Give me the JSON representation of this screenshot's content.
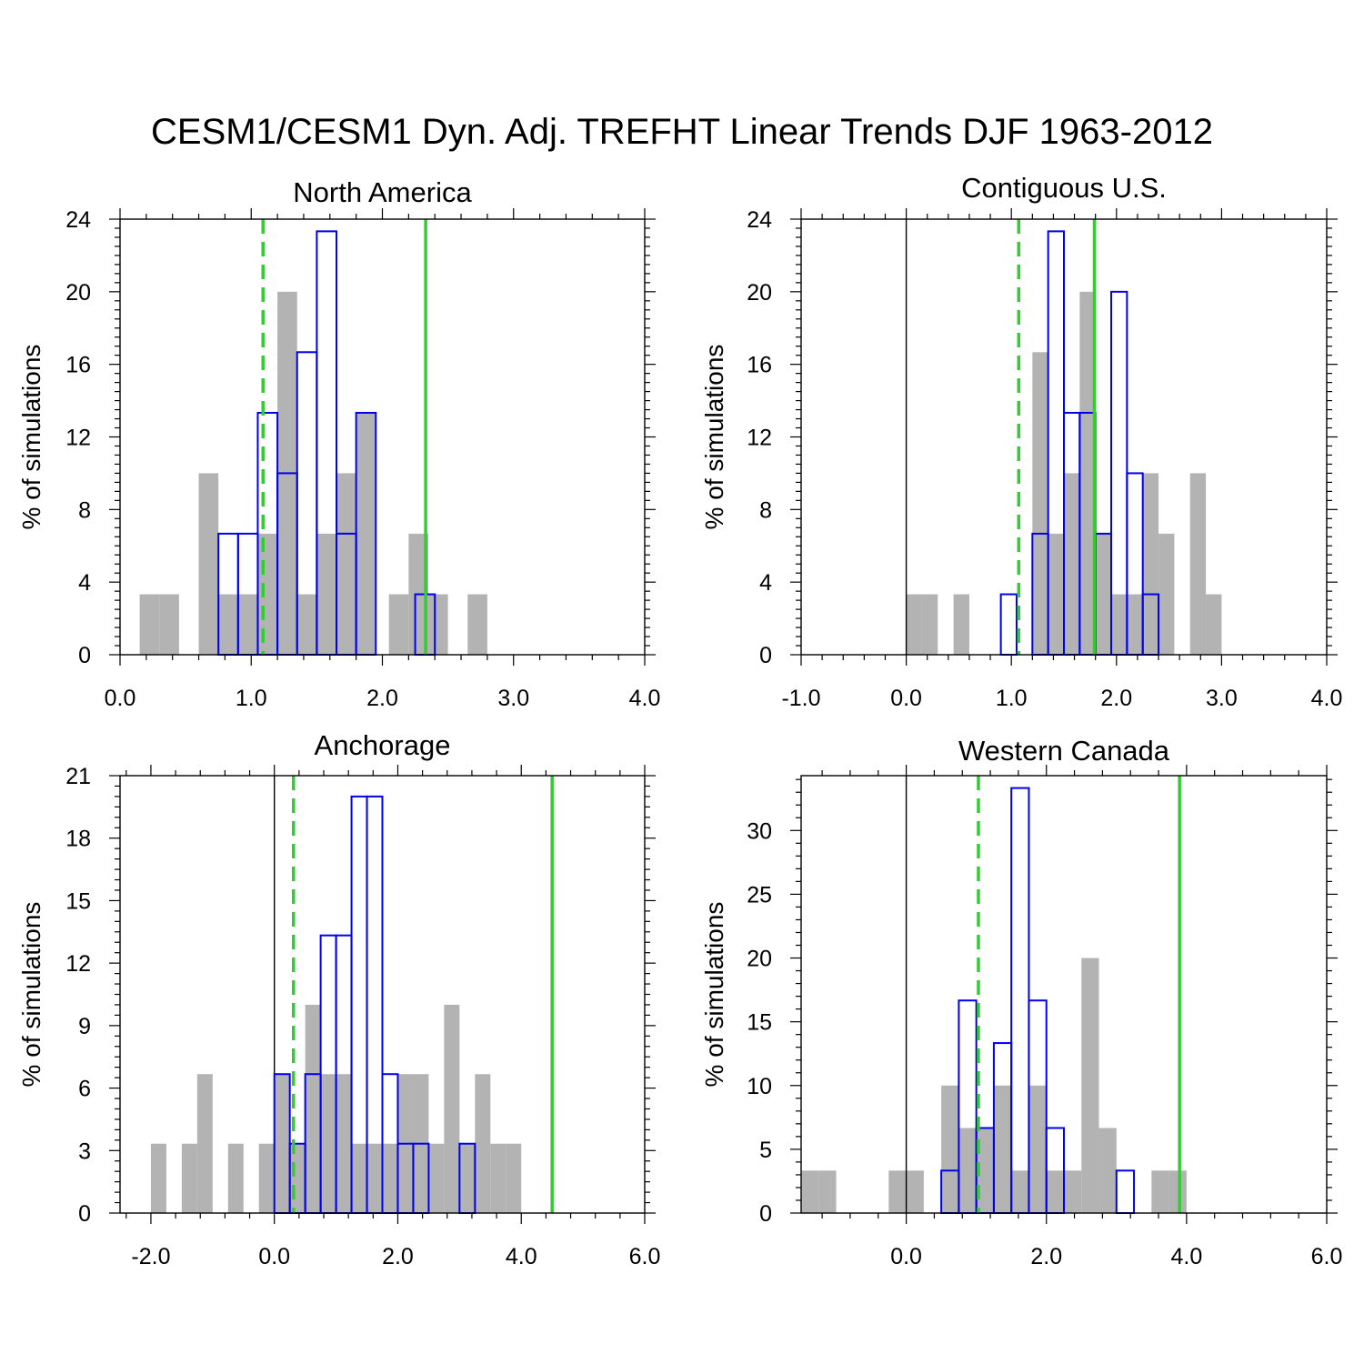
{
  "title": "CESM1/CESM1 Dyn. Adj. TREFHT Linear Trends DJF 1963-2012",
  "colors": {
    "cesm1_fill": "#b3b3b3",
    "dyn_adj_outline": "#0000ee",
    "reference_line": "#33cc33",
    "axis": "#000000"
  },
  "chart_data": [
    {
      "type": "bar",
      "title": "North America",
      "ylabel": "% of simulations",
      "xlim": [
        0,
        4
      ],
      "ylim": [
        0,
        24
      ],
      "xticks": [
        0,
        1,
        2,
        3,
        4
      ],
      "xtick_labels": [
        "0.0",
        "1.0",
        "2.0",
        "3.0",
        "4.0"
      ],
      "yticks": [
        0,
        4,
        8,
        12,
        16,
        20,
        24
      ],
      "ytick_labels": [
        "0",
        "4",
        "8",
        "12",
        "16",
        "20",
        "24"
      ],
      "zero_line": false,
      "bin_width": 0.15,
      "cesm1_bins": [
        [
          0.15,
          3.33
        ],
        [
          0.3,
          3.33
        ],
        [
          0.6,
          10.0
        ],
        [
          0.75,
          3.33
        ],
        [
          0.9,
          3.33
        ],
        [
          1.05,
          6.67
        ],
        [
          1.2,
          20.0
        ],
        [
          1.35,
          3.33
        ],
        [
          1.5,
          6.67
        ],
        [
          1.65,
          10.0
        ],
        [
          1.8,
          13.33
        ],
        [
          2.05,
          3.33
        ],
        [
          2.2,
          6.67
        ],
        [
          2.35,
          3.33
        ],
        [
          2.65,
          3.33
        ]
      ],
      "dyn_adj_bins": [
        [
          0.75,
          6.67
        ],
        [
          0.9,
          6.67
        ],
        [
          1.05,
          13.33
        ],
        [
          1.2,
          10.0
        ],
        [
          1.35,
          16.67
        ],
        [
          1.5,
          23.33
        ],
        [
          1.65,
          6.67
        ],
        [
          1.8,
          13.33
        ],
        [
          2.25,
          3.33
        ]
      ],
      "dashed_line_x": 1.09,
      "solid_line_x": 2.33
    },
    {
      "type": "bar",
      "title": "Contiguous U.S.",
      "ylabel": "% of simulations",
      "xlim": [
        -1,
        4
      ],
      "ylim": [
        0,
        24
      ],
      "xticks": [
        -1,
        0,
        1,
        2,
        3,
        4
      ],
      "xtick_labels": [
        "-1.0",
        "0.0",
        "1.0",
        "2.0",
        "3.0",
        "4.0"
      ],
      "yticks": [
        0,
        4,
        8,
        12,
        16,
        20,
        24
      ],
      "ytick_labels": [
        "0",
        "4",
        "8",
        "12",
        "16",
        "20",
        "24"
      ],
      "zero_line": true,
      "bin_width": 0.15,
      "cesm1_bins": [
        [
          0.0,
          3.33
        ],
        [
          0.15,
          3.33
        ],
        [
          0.45,
          3.33
        ],
        [
          1.2,
          16.67
        ],
        [
          1.35,
          6.67
        ],
        [
          1.5,
          10.0
        ],
        [
          1.65,
          20.0
        ],
        [
          1.8,
          6.67
        ],
        [
          1.95,
          3.33
        ],
        [
          2.1,
          3.33
        ],
        [
          2.25,
          10.0
        ],
        [
          2.4,
          6.67
        ],
        [
          2.7,
          10.0
        ],
        [
          2.85,
          3.33
        ]
      ],
      "dyn_adj_bins": [
        [
          0.9,
          3.33
        ],
        [
          1.2,
          6.67
        ],
        [
          1.35,
          23.33
        ],
        [
          1.5,
          13.33
        ],
        [
          1.65,
          13.33
        ],
        [
          1.8,
          6.67
        ],
        [
          1.95,
          20.0
        ],
        [
          2.1,
          10.0
        ],
        [
          2.25,
          3.33
        ]
      ],
      "dashed_line_x": 1.07,
      "solid_line_x": 1.79
    },
    {
      "type": "bar",
      "title": "Anchorage",
      "ylabel": "% of simulations",
      "xlim": [
        -2.5,
        6
      ],
      "ylim": [
        0,
        21
      ],
      "xticks": [
        -2,
        0,
        2,
        4,
        6
      ],
      "xtick_labels": [
        "-2.0",
        "0.0",
        "2.0",
        "4.0",
        "6.0"
      ],
      "yticks": [
        0,
        3,
        6,
        9,
        12,
        15,
        18,
        21
      ],
      "ytick_labels": [
        "0",
        "3",
        "6",
        "9",
        "12",
        "15",
        "18",
        "21"
      ],
      "zero_line": true,
      "bin_width": 0.25,
      "cesm1_bins": [
        [
          -2.0,
          3.33
        ],
        [
          -1.5,
          3.33
        ],
        [
          -1.25,
          6.67
        ],
        [
          -0.75,
          3.33
        ],
        [
          -0.25,
          3.33
        ],
        [
          0.0,
          6.67
        ],
        [
          0.25,
          3.33
        ],
        [
          0.5,
          10.0
        ],
        [
          0.75,
          6.67
        ],
        [
          1.0,
          6.67
        ],
        [
          1.25,
          3.33
        ],
        [
          1.5,
          3.33
        ],
        [
          1.75,
          3.33
        ],
        [
          2.0,
          6.67
        ],
        [
          2.25,
          6.67
        ],
        [
          2.5,
          3.33
        ],
        [
          2.75,
          10.0
        ],
        [
          3.0,
          3.33
        ],
        [
          3.25,
          6.67
        ],
        [
          3.5,
          3.33
        ],
        [
          3.75,
          3.33
        ]
      ],
      "dyn_adj_bins": [
        [
          0.0,
          6.67
        ],
        [
          0.25,
          3.33
        ],
        [
          0.5,
          6.67
        ],
        [
          0.75,
          13.33
        ],
        [
          1.0,
          13.33
        ],
        [
          1.25,
          20.0
        ],
        [
          1.5,
          20.0
        ],
        [
          1.75,
          6.67
        ],
        [
          2.0,
          3.33
        ],
        [
          2.25,
          3.33
        ],
        [
          3.0,
          3.33
        ]
      ],
      "dashed_line_x": 0.31,
      "solid_line_x": 4.5
    },
    {
      "type": "bar",
      "title": "Western Canada",
      "ylabel": "% of simulations",
      "xlim": [
        -1.5,
        6
      ],
      "ylim": [
        0,
        34.3
      ],
      "xticks": [
        0,
        2,
        4,
        6
      ],
      "xtick_labels": [
        "0.0",
        "2.0",
        "4.0",
        "6.0"
      ],
      "yticks": [
        0,
        5,
        10,
        15,
        20,
        25,
        30
      ],
      "ytick_labels": [
        "0",
        "5",
        "10",
        "15",
        "20",
        "25",
        "30"
      ],
      "zero_line": true,
      "bin_width": 0.25,
      "cesm1_bins": [
        [
          -1.5,
          3.33
        ],
        [
          -1.25,
          3.33
        ],
        [
          -0.25,
          3.33
        ],
        [
          0.0,
          3.33
        ],
        [
          0.5,
          10.0
        ],
        [
          0.75,
          6.67
        ],
        [
          1.0,
          6.67
        ],
        [
          1.25,
          10.0
        ],
        [
          1.5,
          3.33
        ],
        [
          1.75,
          10.0
        ],
        [
          2.0,
          3.33
        ],
        [
          2.25,
          3.33
        ],
        [
          2.5,
          20.0
        ],
        [
          2.75,
          6.67
        ],
        [
          3.5,
          3.33
        ],
        [
          3.75,
          3.33
        ]
      ],
      "dyn_adj_bins": [
        [
          0.5,
          3.33
        ],
        [
          0.75,
          16.67
        ],
        [
          1.0,
          6.67
        ],
        [
          1.25,
          13.33
        ],
        [
          1.5,
          33.33
        ],
        [
          1.75,
          16.67
        ],
        [
          2.0,
          6.67
        ],
        [
          3.0,
          3.33
        ]
      ],
      "dashed_line_x": 1.03,
      "solid_line_x": 3.9
    }
  ]
}
